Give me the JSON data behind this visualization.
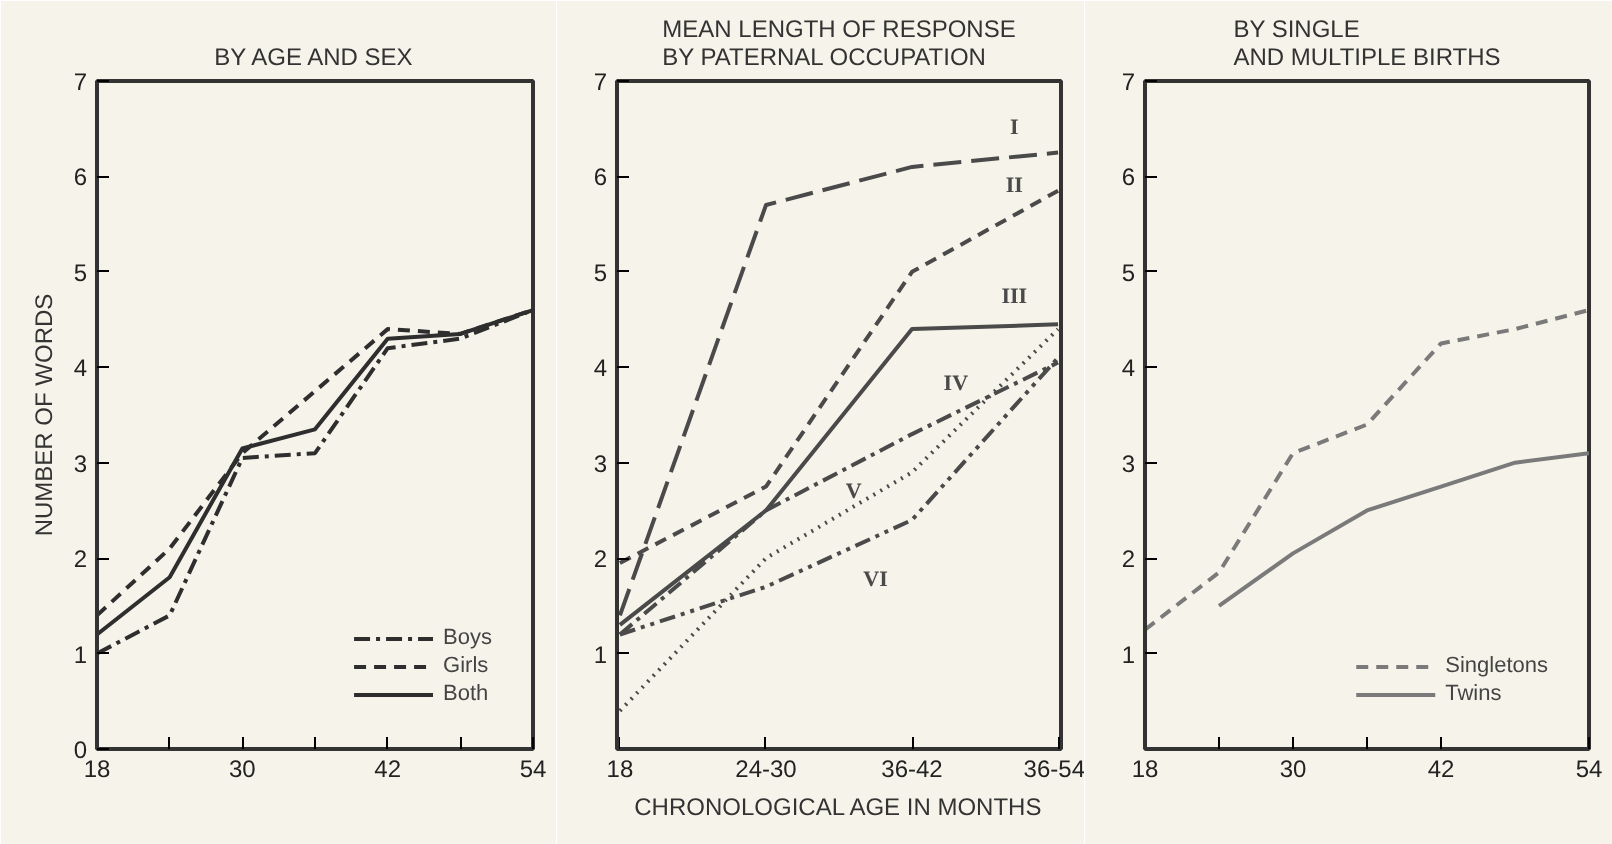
{
  "chart_data": [
    {
      "type": "line",
      "title": "BY AGE AND SEX",
      "ylabel": "NUMBER OF WORDS",
      "x": [
        18,
        24,
        30,
        36,
        42,
        48,
        54
      ],
      "xlim": [
        18,
        54
      ],
      "xticks": [
        18,
        {
          "value": 24,
          "label": null
        },
        30,
        {
          "value": 36,
          "label": null
        },
        42,
        {
          "value": 48,
          "label": null
        },
        54
      ],
      "ylim": [
        0,
        7
      ],
      "yticks": [
        0,
        1,
        2,
        3,
        4,
        5,
        6,
        7
      ],
      "grid": false,
      "legend": "bottom right",
      "series": [
        {
          "name": "Boys",
          "color": "#2e2e2e",
          "line_style": "dashdot",
          "values": [
            1.0,
            1.4,
            3.05,
            3.1,
            4.2,
            4.3,
            4.6
          ]
        },
        {
          "name": "Girls",
          "color": "#2e2e2e",
          "line_style": "dashed",
          "values": [
            1.4,
            2.1,
            3.1,
            3.75,
            4.4,
            4.35,
            4.6
          ]
        },
        {
          "name": "Both",
          "color": "#2e2e2e",
          "line_style": "solid",
          "values": [
            1.2,
            1.8,
            3.15,
            3.35,
            4.3,
            4.35,
            4.6
          ]
        }
      ]
    },
    {
      "type": "line",
      "title": "MEAN LENGTH OF RESPONSE\nBY PATERNAL OCCUPATION",
      "xlabel": "CHRONOLOGICAL AGE IN MONTHS",
      "categories": [
        "18",
        "24-30",
        "36-42",
        "36-54"
      ],
      "ylim": [
        0,
        7
      ],
      "yticks": [
        1,
        2,
        3,
        4,
        5,
        6,
        7
      ],
      "grid": false,
      "legend": false,
      "series": [
        {
          "name": "I",
          "color": "#4a4a4a",
          "line_style": "longdash",
          "values": [
            1.4,
            5.7,
            6.1,
            6.25
          ]
        },
        {
          "name": "II",
          "color": "#4a4a4a",
          "line_style": "dashed",
          "values": [
            1.95,
            2.75,
            5.0,
            5.85
          ]
        },
        {
          "name": "III",
          "color": "#4a4a4a",
          "line_style": "solid",
          "values": [
            1.3,
            2.5,
            4.4,
            4.45
          ]
        },
        {
          "name": "IV",
          "color": "#4a4a4a",
          "line_style": "dashdot",
          "values": [
            1.2,
            2.5,
            3.3,
            4.05
          ]
        },
        {
          "name": "V",
          "color": "#4a4a4a",
          "line_style": "dotted",
          "values": [
            0.4,
            2.0,
            2.9,
            4.4
          ]
        },
        {
          "name": "VI",
          "color": "#4a4a4a",
          "line_style": "dashdotdot",
          "values": [
            1.2,
            1.7,
            2.4,
            4.1
          ]
        }
      ]
    },
    {
      "type": "line",
      "title": "BY SINGLE\nAND MULTIPLE BIRTHS",
      "x": [
        18,
        24,
        30,
        36,
        42,
        48,
        54
      ],
      "xlim": [
        18,
        54
      ],
      "xticks": [
        18,
        {
          "value": 24,
          "label": null
        },
        30,
        {
          "value": 36,
          "label": null
        },
        42,
        54
      ],
      "ylim": [
        0,
        7
      ],
      "yticks": [
        1,
        2,
        3,
        4,
        5,
        6,
        7
      ],
      "grid": false,
      "legend": "bottom right",
      "series": [
        {
          "name": "Singletons",
          "color": "#7a7a7a",
          "line_style": "dashed",
          "values": [
            1.25,
            1.85,
            3.1,
            3.4,
            4.25,
            4.4,
            4.6
          ]
        },
        {
          "name": "Twins",
          "color": "#7a7a7a",
          "line_style": "solid",
          "values": [
            null,
            1.5,
            2.05,
            2.5,
            2.75,
            3.0,
            3.1
          ]
        }
      ]
    }
  ]
}
